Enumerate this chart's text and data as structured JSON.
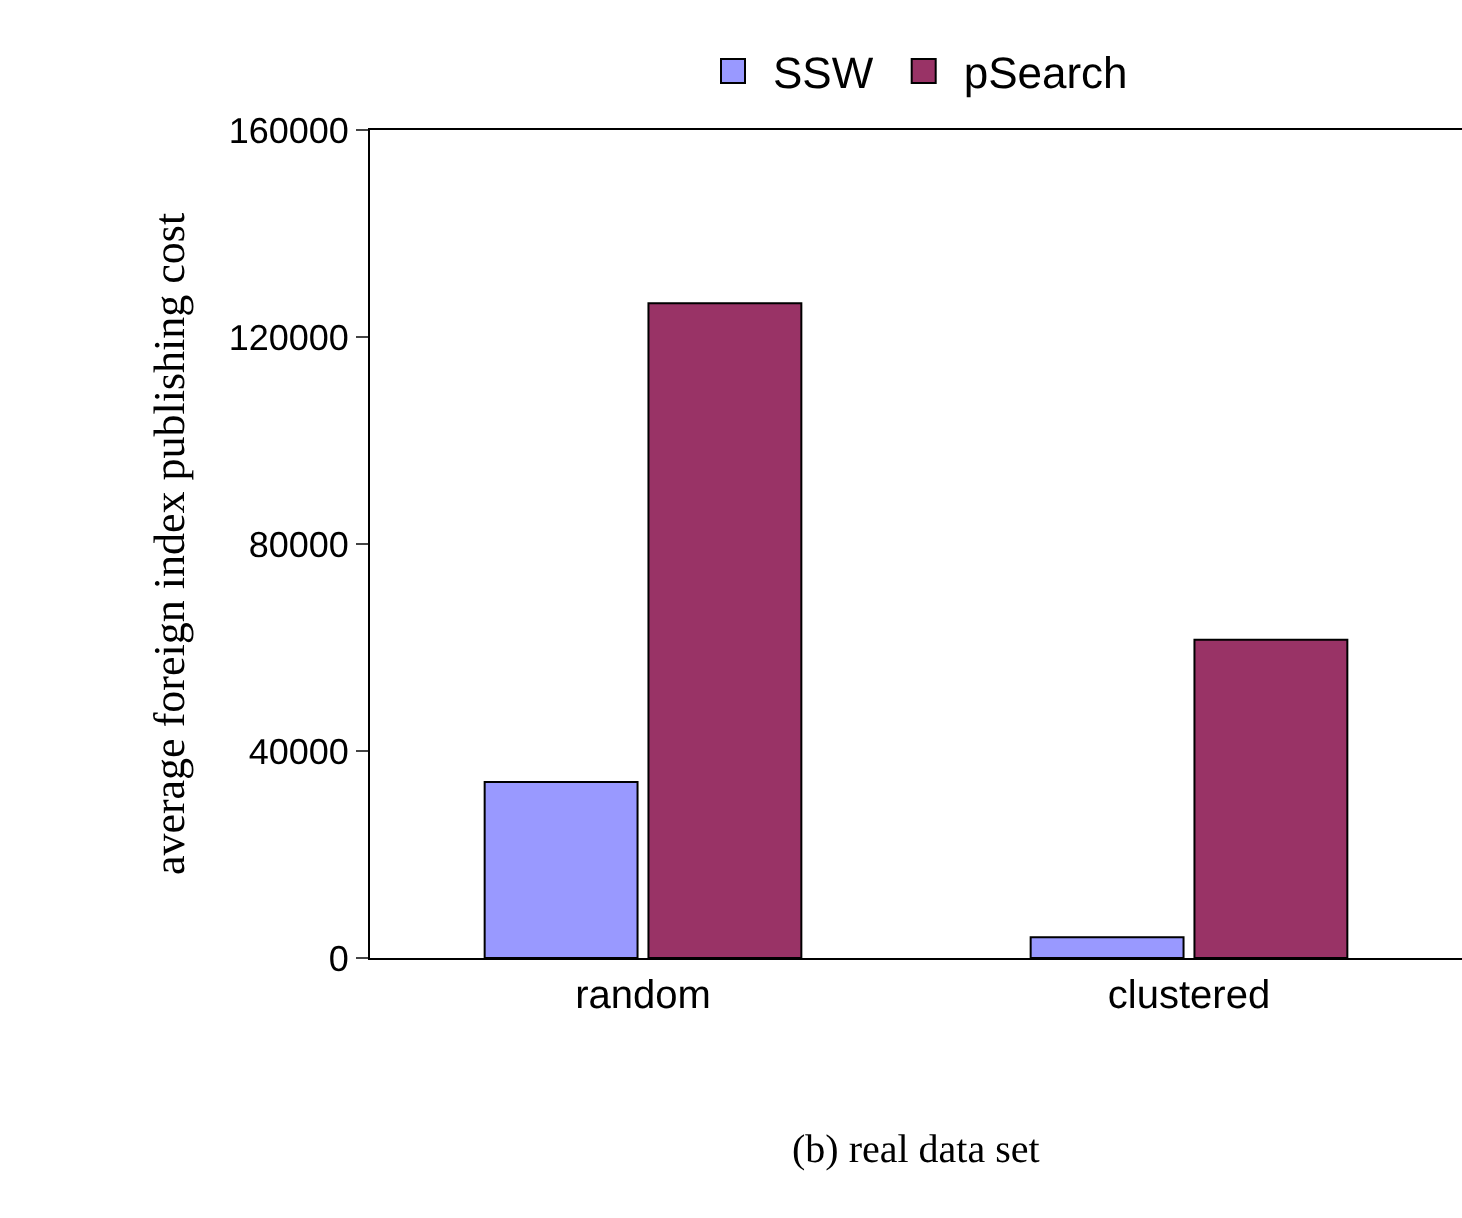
{
  "chart_data": {
    "type": "bar",
    "categories": [
      "random",
      "clustered"
    ],
    "series": [
      {
        "name": "SSW",
        "color": "#9999ff",
        "values": [
          34000,
          4000
        ]
      },
      {
        "name": "pSearch",
        "color": "#993366",
        "values": [
          126500,
          61500
        ]
      }
    ],
    "ylabel": "average foreign index publishing cost",
    "ylim": [
      0,
      160000
    ],
    "yticks": [
      0,
      40000,
      80000,
      120000,
      160000
    ],
    "legend": "top",
    "annotations": [
      "(b) real data set"
    ]
  }
}
